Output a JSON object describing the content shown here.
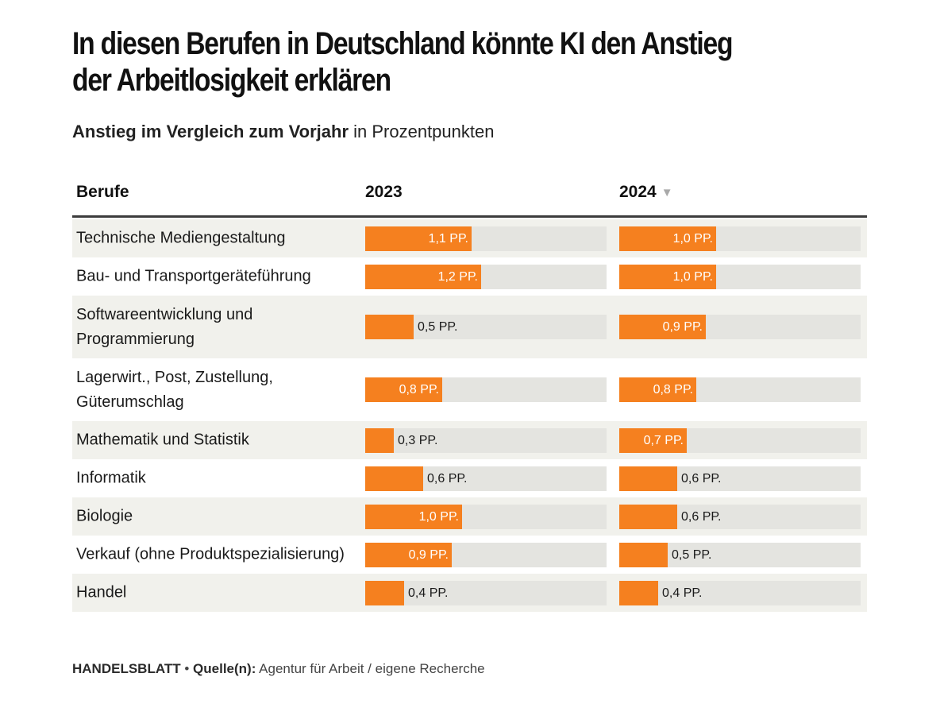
{
  "title": "In diesen Berufen in Deutschland könnte KI den Anstieg der Arbeitlosigkeit erklären",
  "subtitle": {
    "bold": "Anstieg im Vergleich zum Vorjahr",
    "rest": " in Prozentpunkten"
  },
  "headers": {
    "category": "Berufe",
    "col_2023": "2023",
    "col_2024": "2024",
    "sort_icon": "▼"
  },
  "unit_suffix": " PP.",
  "colors": {
    "bar": "#f5801f",
    "track": "#e4e4e0",
    "row_alt": "#f1f1ec"
  },
  "footer": {
    "brand": "HANDELSBLATT",
    "separator": " • ",
    "source_label": "Quelle(n):",
    "source_text": " Agentur für Arbeit / eigene Recherche"
  },
  "chart_data": {
    "type": "bar",
    "orientation": "horizontal",
    "scale_max": 2.5,
    "sorted_by": "2024 descending",
    "categories": [
      "Technische Mediengestaltung",
      "Bau- und Transportgeräteführung",
      "Softwareentwicklung und Programmierung",
      "Lagerwirt., Post, Zustellung, Güterumschlag",
      "Mathematik und Statistik",
      "Informatik",
      "Biologie",
      "Verkauf (ohne Produktspezialisierung)",
      "Handel"
    ],
    "series": [
      {
        "name": "2023",
        "values": [
          1.1,
          1.2,
          0.5,
          0.8,
          0.3,
          0.6,
          1.0,
          0.9,
          0.4
        ],
        "labels": [
          "1,1 PP.",
          "1,2 PP.",
          "0,5 PP.",
          "0,8 PP.",
          "0,3 PP.",
          "0,6 PP.",
          "1,0 PP.",
          "0,9 PP.",
          "0,4 PP."
        ]
      },
      {
        "name": "2024",
        "values": [
          1.0,
          1.0,
          0.9,
          0.8,
          0.7,
          0.6,
          0.6,
          0.5,
          0.4
        ],
        "labels": [
          "1,0 PP.",
          "1,0 PP.",
          "0,9 PP.",
          "0,8 PP.",
          "0,7 PP.",
          "0,6 PP.",
          "0,6 PP.",
          "0,5 PP.",
          "0,4 PP."
        ]
      }
    ]
  }
}
